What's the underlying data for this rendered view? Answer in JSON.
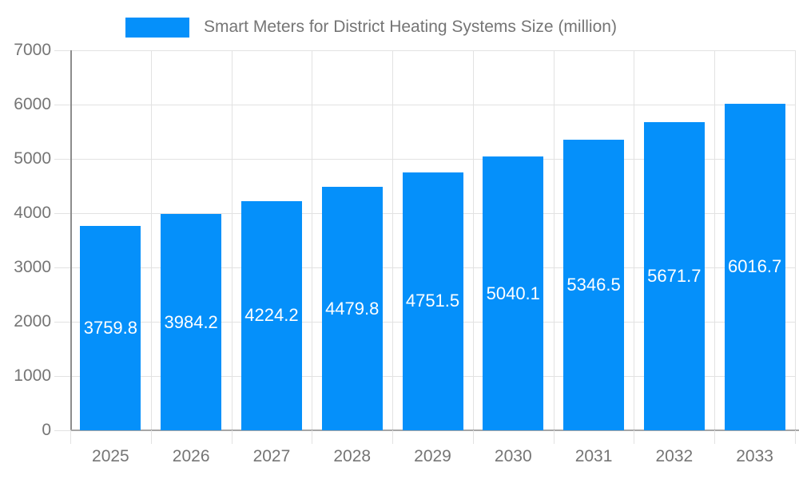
{
  "legend": {
    "label": "Smart Meters for District Heating Systems Size (million)"
  },
  "colors": {
    "bar": "#0590FA",
    "bar_label": "#FFFFFF",
    "axis_text": "#757575",
    "grid": "#E2E2E2",
    "x_axis_line": "#A6A6A6",
    "y_axis_line": "#8C8C8C",
    "background": "#FFFFFF"
  },
  "chart_data": {
    "type": "bar",
    "title": "Smart Meters for District Heating Systems Size (million)",
    "categories": [
      "2025",
      "2026",
      "2027",
      "2028",
      "2029",
      "2030",
      "2031",
      "2032",
      "2033"
    ],
    "values": [
      3759.8,
      3984.2,
      4224.2,
      4479.8,
      4751.5,
      5040.1,
      5346.5,
      5671.7,
      6016.7
    ],
    "value_labels": [
      "3759.8",
      "3984.2",
      "4224.2",
      "4479.8",
      "4751.5",
      "5040.1",
      "5346.5",
      "5671.7",
      "6016.7"
    ],
    "xlabel": "",
    "ylabel": "",
    "ylim": [
      0,
      7000
    ],
    "yticks": [
      0,
      1000,
      2000,
      3000,
      4000,
      5000,
      6000,
      7000
    ],
    "grid": true,
    "legend_position": "top",
    "bar_color": "#0590FA",
    "value_label_position": "center-inside"
  }
}
